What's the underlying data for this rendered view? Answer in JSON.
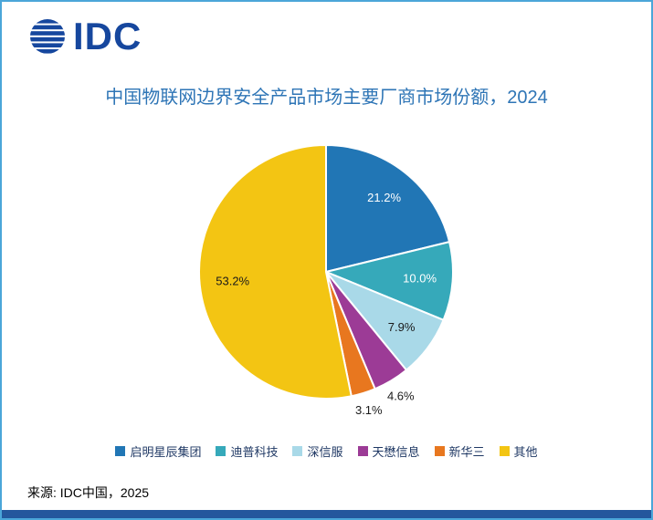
{
  "frame": {
    "background": "#FFFFFF",
    "border_color": "#4BA6D9",
    "bottom_bar_color": "#24579D"
  },
  "logo": {
    "text": "IDC",
    "color": "#16479E",
    "icon": "globe-stripes-icon"
  },
  "title": {
    "text": "中国物联网边界安全产品市场主要厂商市场份额，2024",
    "color": "#2E75B6"
  },
  "source": {
    "text": "来源: IDC中国，2025"
  },
  "chart_data": {
    "type": "pie",
    "title": "中国物联网边界安全产品市场主要厂商市场份额，2024",
    "start_angle_deg": 0,
    "direction": "clockwise",
    "legend_position": "bottom",
    "slices": [
      {
        "label": "启明星辰集团",
        "value": 21.2,
        "display": "21.2%",
        "color": "#2176B5",
        "label_inside": true,
        "label_color": "#FFFFFF"
      },
      {
        "label": "迪普科技",
        "value": 10.0,
        "display": "10.0%",
        "color": "#36A9BA",
        "label_inside": true,
        "label_color": "#FFFFFF"
      },
      {
        "label": "深信服",
        "value": 7.9,
        "display": "7.9%",
        "color": "#A9D9E8",
        "label_inside": true,
        "label_color": "#1A1A1A"
      },
      {
        "label": "天懋信息",
        "value": 4.6,
        "display": "4.6%",
        "color": "#9C3B96",
        "label_inside": false,
        "label_color": "#1A1A1A"
      },
      {
        "label": "新华三",
        "value": 3.1,
        "display": "3.1%",
        "color": "#E8771F",
        "label_inside": false,
        "label_color": "#1A1A1A"
      },
      {
        "label": "其他",
        "value": 53.2,
        "display": "53.2%",
        "color": "#F3C513",
        "label_inside": true,
        "label_color": "#1A1A1A"
      }
    ]
  }
}
